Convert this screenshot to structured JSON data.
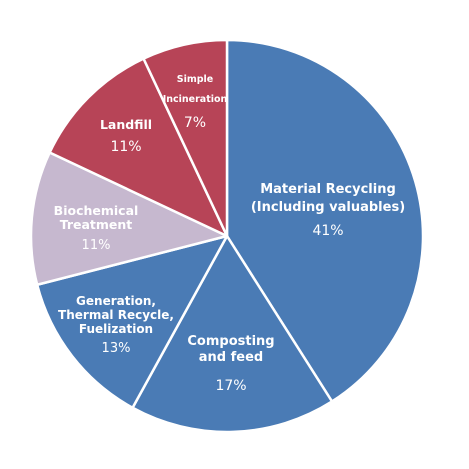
{
  "chart_data": {
    "type": "pie",
    "title": "",
    "slices": [
      {
        "label_lines": [
          "Material Recycling",
          "(Including valuables)"
        ],
        "percent_label": "41%",
        "value": 41,
        "color": "#4a7bb5"
      },
      {
        "label_lines": [
          "Composting",
          "and feed"
        ],
        "percent_label": "17%",
        "value": 17,
        "color": "#4a7bb5"
      },
      {
        "label_lines": [
          "Generation,",
          "Thermal Recycle,",
          "Fuelization"
        ],
        "percent_label": "13%",
        "value": 13,
        "color": "#4a7bb5"
      },
      {
        "label_lines": [
          "Biochemical",
          "Treatment"
        ],
        "percent_label": "11%",
        "value": 11,
        "color": "#c6b8cf"
      },
      {
        "label_lines": [
          "Landfill"
        ],
        "percent_label": "11%",
        "value": 11,
        "color": "#b74457"
      },
      {
        "label_lines": [
          "Simple",
          "Incineration"
        ],
        "percent_label": "7%",
        "value": 7,
        "color": "#b74457"
      }
    ]
  }
}
